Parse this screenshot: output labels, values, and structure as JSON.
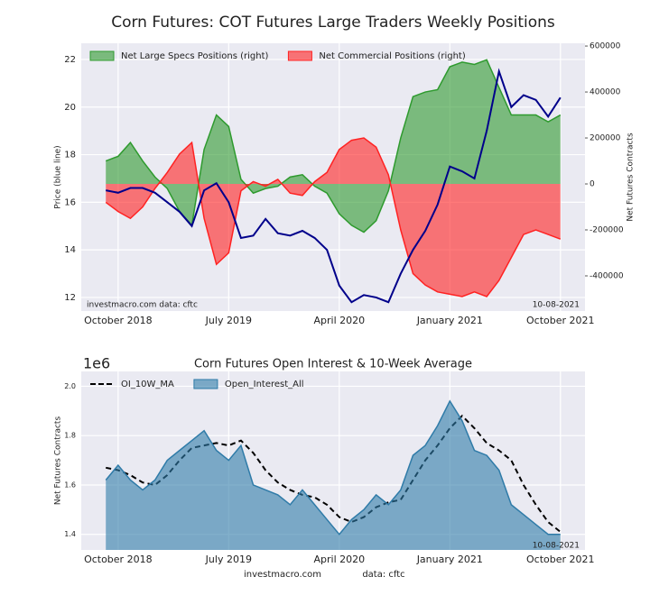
{
  "chart_data": [
    {
      "type": "combo",
      "title": "Corn Futures: COT Futures Large Traders Weekly Positions",
      "ylabel": "Price (blue line)",
      "y2label": "Net Futures Contracts",
      "x": [
        "2018-09",
        "2018-10",
        "2018-11",
        "2018-12",
        "2019-01",
        "2019-02",
        "2019-03",
        "2019-04",
        "2019-05",
        "2019-06",
        "2019-07",
        "2019-08",
        "2019-09",
        "2019-10",
        "2019-11",
        "2019-12",
        "2020-01",
        "2020-02",
        "2020-03",
        "2020-04",
        "2020-05",
        "2020-06",
        "2020-07",
        "2020-08",
        "2020-09",
        "2020-10",
        "2020-11",
        "2020-12",
        "2021-01",
        "2021-02",
        "2021-03",
        "2021-04",
        "2021-05",
        "2021-06",
        "2021-07",
        "2021-08",
        "2021-09",
        "2021-10"
      ],
      "xlim": [
        "2018-07",
        "2021-12"
      ],
      "xticks": [
        {
          "value": "2018-10",
          "label": "October 2018"
        },
        {
          "value": "2019-07",
          "label": "July 2019"
        },
        {
          "value": "2020-04",
          "label": "April 2020"
        },
        {
          "value": "2021-01",
          "label": "January 2021"
        },
        {
          "value": "2021-10",
          "label": "October 2021"
        }
      ],
      "ylim": [
        11.43,
        22.68
      ],
      "yticks": [
        12,
        14,
        16,
        18,
        20,
        22
      ],
      "y2lim": [
        -553000,
        612000
      ],
      "y2ticks": [
        -400000,
        -200000,
        0,
        200000,
        400000,
        600000
      ],
      "grid": true,
      "legend": "upper left",
      "series": [
        {
          "name": "Net Large Specs Positions (right)",
          "kind": "area",
          "axis": "y2",
          "color": "#2e9a2e",
          "values": [
            100000,
            120000,
            180000,
            100000,
            30000,
            -20000,
            -120000,
            -180000,
            150000,
            300000,
            250000,
            20000,
            -40000,
            -20000,
            -10000,
            30000,
            40000,
            -10000,
            -40000,
            -130000,
            -180000,
            -210000,
            -160000,
            -30000,
            200000,
            380000,
            400000,
            410000,
            510000,
            530000,
            520000,
            540000,
            420000,
            300000,
            300000,
            300000,
            270000,
            300000
          ]
        },
        {
          "name": "Net Commercial Positions (right)",
          "kind": "area",
          "axis": "y2",
          "color": "#ff2222",
          "values": [
            -80000,
            -120000,
            -150000,
            -100000,
            -20000,
            50000,
            130000,
            180000,
            -150000,
            -350000,
            -300000,
            -30000,
            10000,
            -10000,
            20000,
            -40000,
            -50000,
            10000,
            50000,
            150000,
            190000,
            200000,
            160000,
            40000,
            -200000,
            -390000,
            -440000,
            -470000,
            -480000,
            -490000,
            -470000,
            -490000,
            -420000,
            -320000,
            -220000,
            -200000,
            -220000,
            -240000
          ]
        },
        {
          "name": "Price",
          "kind": "line",
          "color": "#00008b",
          "values": [
            16.5,
            16.4,
            16.6,
            16.6,
            16.4,
            16.0,
            15.6,
            15.0,
            16.5,
            16.8,
            16.0,
            14.5,
            14.6,
            15.3,
            14.7,
            14.6,
            14.8,
            14.5,
            14.0,
            12.5,
            11.8,
            12.1,
            12.0,
            11.8,
            13.0,
            14.0,
            14.8,
            15.9,
            17.5,
            17.3,
            17.0,
            19.0,
            21.5,
            20.0,
            20.5,
            20.3,
            19.6,
            20.4
          ]
        }
      ],
      "annotations": [
        "investmacro.com   data: cftc",
        "10-08-2021"
      ]
    },
    {
      "type": "combo",
      "title": "Corn Futures Open Interest & 10-Week Average",
      "ylabel": "Net Futures Contracts",
      "offset_label": "1e6",
      "x": [
        "2018-09",
        "2018-10",
        "2018-11",
        "2018-12",
        "2019-01",
        "2019-02",
        "2019-03",
        "2019-04",
        "2019-05",
        "2019-06",
        "2019-07",
        "2019-08",
        "2019-09",
        "2019-10",
        "2019-11",
        "2019-12",
        "2020-01",
        "2020-02",
        "2020-03",
        "2020-04",
        "2020-05",
        "2020-06",
        "2020-07",
        "2020-08",
        "2020-09",
        "2020-10",
        "2020-11",
        "2020-12",
        "2021-01",
        "2021-02",
        "2021-03",
        "2021-04",
        "2021-05",
        "2021-06",
        "2021-07",
        "2021-08",
        "2021-09",
        "2021-10"
      ],
      "xlim": [
        "2018-07",
        "2021-12"
      ],
      "xticks": [
        {
          "value": "2018-10",
          "label": "October 2018"
        },
        {
          "value": "2019-07",
          "label": "July 2019"
        },
        {
          "value": "2020-04",
          "label": "April 2020"
        },
        {
          "value": "2021-01",
          "label": "January 2021"
        },
        {
          "value": "2021-10",
          "label": "October 2021"
        }
      ],
      "ylim": [
        1.337,
        2.06
      ],
      "yticks": [
        1.4,
        1.6,
        1.8,
        {
          "value": 2.0,
          "label": "2.0"
        }
      ],
      "grid": true,
      "legend": "upper left",
      "series": [
        {
          "name": "OI_10W_MA",
          "kind": "line",
          "color": "#000000",
          "linestyle": "dashed",
          "values": [
            1.67,
            1.66,
            1.64,
            1.61,
            1.6,
            1.64,
            1.7,
            1.75,
            1.76,
            1.77,
            1.76,
            1.78,
            1.73,
            1.66,
            1.61,
            1.58,
            1.56,
            1.55,
            1.52,
            1.47,
            1.45,
            1.47,
            1.51,
            1.53,
            1.54,
            1.62,
            1.7,
            1.76,
            1.83,
            1.88,
            1.83,
            1.77,
            1.74,
            1.7,
            1.6,
            1.52,
            1.45,
            1.41
          ]
        },
        {
          "name": "Open_Interest_All",
          "kind": "area",
          "color": "#2f7ba8",
          "values": [
            1.62,
            1.68,
            1.62,
            1.58,
            1.62,
            1.7,
            1.74,
            1.78,
            1.82,
            1.74,
            1.7,
            1.76,
            1.6,
            1.58,
            1.56,
            1.52,
            1.58,
            1.52,
            1.46,
            1.4,
            1.46,
            1.5,
            1.56,
            1.52,
            1.58,
            1.72,
            1.76,
            1.84,
            1.94,
            1.86,
            1.74,
            1.72,
            1.66,
            1.52,
            1.48,
            1.44,
            1.4,
            1.4
          ]
        }
      ],
      "annotations": [
        "10-08-2021",
        "investmacro.com",
        "data: cftc"
      ]
    }
  ]
}
